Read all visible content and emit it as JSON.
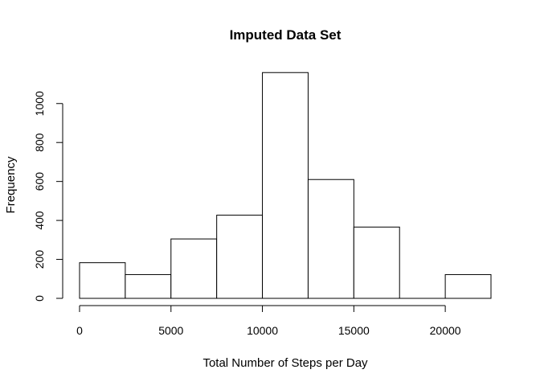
{
  "chart_data": {
    "type": "histogram",
    "title": "Imputed Data Set",
    "xlabel": "Total Number of Steps per Day",
    "ylabel": "Frequency",
    "xlim": [
      0,
      22500
    ],
    "ylim": [
      0,
      1160
    ],
    "x_ticks": [
      0,
      5000,
      10000,
      15000,
      20000
    ],
    "y_ticks": [
      0,
      200,
      400,
      600,
      800,
      1000
    ],
    "bins": [
      {
        "start": 0,
        "end": 2500,
        "value": 183
      },
      {
        "start": 2500,
        "end": 5000,
        "value": 122
      },
      {
        "start": 5000,
        "end": 7500,
        "value": 305
      },
      {
        "start": 7500,
        "end": 10000,
        "value": 427
      },
      {
        "start": 10000,
        "end": 12500,
        "value": 1159
      },
      {
        "start": 12500,
        "end": 15000,
        "value": 610
      },
      {
        "start": 15000,
        "end": 17500,
        "value": 366
      },
      {
        "start": 17500,
        "end": 20000,
        "value": 0
      },
      {
        "start": 20000,
        "end": 22500,
        "value": 122
      }
    ],
    "bar_fill": "#ffffff",
    "bar_stroke": "#000000",
    "grid": false,
    "legend": "none"
  }
}
